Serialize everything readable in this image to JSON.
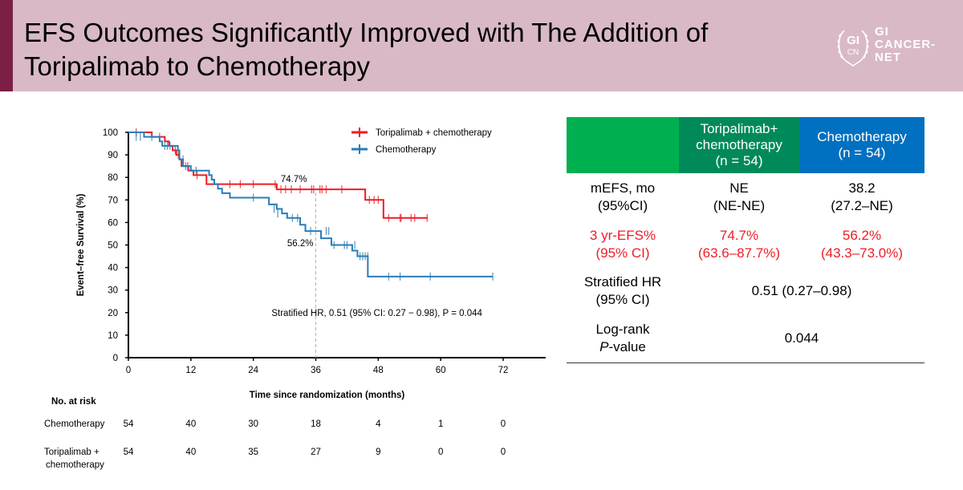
{
  "header": {
    "title_line1": "EFS Outcomes Significantly Improved with The Addition of",
    "title_line2": "Toripalimab to Chemotherapy",
    "logo_mark_top": "GI",
    "logo_mark_bottom": "CN",
    "logo_line1": "GI",
    "logo_line2": "CANCER-",
    "logo_line3": "NET"
  },
  "colors": {
    "header_bg": "#d9b9c6",
    "header_accent": "#7b1f45",
    "toripalimab": "#ee1c25",
    "chemotherapy": "#2a7db5",
    "table_corner": "#00b050",
    "table_tori_header": "#008a5a",
    "table_chemo_header": "#0070c0",
    "highlight_text": "#ee1c25"
  },
  "chart_data": {
    "type": "line",
    "subtype": "kaplan-meier",
    "xlabel": "Time since randomization (months)",
    "ylabel": "Event–free Survival (%)",
    "xlim": [
      0,
      72
    ],
    "ylim": [
      0,
      100
    ],
    "xticks": [
      0,
      12,
      24,
      36,
      48,
      60,
      72
    ],
    "yticks": [
      0,
      10,
      20,
      30,
      40,
      50,
      60,
      70,
      80,
      90,
      100
    ],
    "grid": false,
    "legend_position": "top-right",
    "reference_line_x": 36,
    "annotation": "Stratified HR, 0.51 (95% CI: 0.27 − 0.98), P = 0.044",
    "series": [
      {
        "name": "Toripalimab + chemotherapy",
        "color": "#ee1c25",
        "label_at_36": "74.7%",
        "steps": [
          [
            0,
            100
          ],
          [
            4.5,
            98
          ],
          [
            7,
            96
          ],
          [
            7.8,
            94
          ],
          [
            8.5,
            92
          ],
          [
            9.2,
            90
          ],
          [
            9.8,
            88
          ],
          [
            10.2,
            85
          ],
          [
            11.5,
            83
          ],
          [
            12.5,
            81
          ],
          [
            15,
            77
          ],
          [
            28.5,
            74.7
          ],
          [
            45.5,
            70
          ],
          [
            49,
            62
          ],
          [
            57.5,
            62
          ]
        ],
        "censors": [
          [
            1.5,
            100
          ],
          [
            6,
            98
          ],
          [
            9,
            92
          ],
          [
            9.6,
            90
          ],
          [
            11.4,
            85
          ],
          [
            13.2,
            81
          ],
          [
            19.5,
            77
          ],
          [
            21.5,
            77
          ],
          [
            24,
            77
          ],
          [
            28.2,
            77
          ],
          [
            29.3,
            74.7
          ],
          [
            30.2,
            74.7
          ],
          [
            31.3,
            74.7
          ],
          [
            33,
            74.7
          ],
          [
            35.2,
            74.7
          ],
          [
            35.6,
            74.7
          ],
          [
            36.8,
            74.7
          ],
          [
            37.2,
            74.7
          ],
          [
            38,
            74.7
          ],
          [
            41,
            74.7
          ],
          [
            46.3,
            70
          ],
          [
            47.2,
            70
          ],
          [
            48,
            70
          ],
          [
            50,
            62
          ],
          [
            52.2,
            62
          ],
          [
            52.4,
            62
          ],
          [
            54.3,
            62
          ],
          [
            55,
            62
          ],
          [
            57.4,
            62
          ]
        ]
      },
      {
        "name": "Chemotherapy",
        "color": "#2a7db5",
        "label_at_36": "56.2%",
        "steps": [
          [
            0,
            100
          ],
          [
            3,
            98
          ],
          [
            6,
            96
          ],
          [
            6.5,
            94
          ],
          [
            9.5,
            92
          ],
          [
            9.8,
            88
          ],
          [
            10.5,
            85
          ],
          [
            12,
            83
          ],
          [
            15.5,
            81
          ],
          [
            16,
            79
          ],
          [
            16.5,
            77
          ],
          [
            17.2,
            75
          ],
          [
            18,
            73
          ],
          [
            19.5,
            71
          ],
          [
            27,
            68
          ],
          [
            28.5,
            66
          ],
          [
            29.5,
            64
          ],
          [
            30.5,
            62
          ],
          [
            33,
            59
          ],
          [
            34,
            56.2
          ],
          [
            37,
            53
          ],
          [
            39,
            50
          ],
          [
            43,
            47.5
          ],
          [
            44,
            45
          ],
          [
            46,
            36
          ],
          [
            70,
            36
          ]
        ],
        "censors": [
          [
            1.5,
            98
          ],
          [
            2.3,
            98
          ],
          [
            4.5,
            98
          ],
          [
            7,
            94
          ],
          [
            7.5,
            94
          ],
          [
            8,
            94
          ],
          [
            10.5,
            88
          ],
          [
            11,
            85
          ],
          [
            13,
            83
          ],
          [
            24,
            71
          ],
          [
            28,
            66
          ],
          [
            28.7,
            64
          ],
          [
            31.5,
            62
          ],
          [
            32.5,
            62
          ],
          [
            35,
            56.2
          ],
          [
            38,
            56.2
          ],
          [
            38.5,
            56.2
          ],
          [
            39.5,
            50
          ],
          [
            41.5,
            50
          ],
          [
            42,
            50
          ],
          [
            43.5,
            50
          ],
          [
            44.5,
            45
          ],
          [
            45,
            45
          ],
          [
            45.5,
            45
          ],
          [
            46,
            45
          ],
          [
            50,
            36
          ],
          [
            52.2,
            36
          ],
          [
            58,
            36
          ],
          [
            70,
            36
          ]
        ]
      }
    ],
    "risk_table": {
      "title": "No. at risk",
      "times": [
        0,
        12,
        24,
        36,
        48,
        60,
        72
      ],
      "rows": [
        {
          "label": "Chemotherapy",
          "values": [
            54,
            40,
            30,
            18,
            4,
            1,
            0
          ]
        },
        {
          "label_line1": "Toripalimab +",
          "label_line2": "chemotherapy",
          "values": [
            54,
            40,
            35,
            27,
            9,
            0,
            0
          ]
        }
      ]
    }
  },
  "results_table": {
    "headers": {
      "corner": "",
      "tori_line1": "Toripalimab+",
      "tori_line2": "chemotherapy",
      "tori_line3": "(n = 54)",
      "chemo_line1": "Chemotherapy",
      "chemo_line2": "(n = 54)"
    },
    "rows": [
      {
        "label1": "mEFS, mo",
        "label2": "(95%CI)",
        "tori1": "NE",
        "tori2": "(NE-NE)",
        "chemo1": "38.2",
        "chemo2": "(27.2–NE)"
      },
      {
        "label1": "3 yr-EFS%",
        "label2": "(95% CI)",
        "tori1": "74.7%",
        "tori2": "(63.6–87.7%)",
        "chemo1": "56.2%",
        "chemo2": "(43.3–73.0%)"
      },
      {
        "label1": "Stratified HR",
        "label2": "(95% CI)",
        "merged": "0.51 (0.27–0.98)"
      },
      {
        "label1": "Log-rank",
        "label2_italic": "P",
        "label2_rest": "-value",
        "merged": "0.044"
      }
    ]
  }
}
